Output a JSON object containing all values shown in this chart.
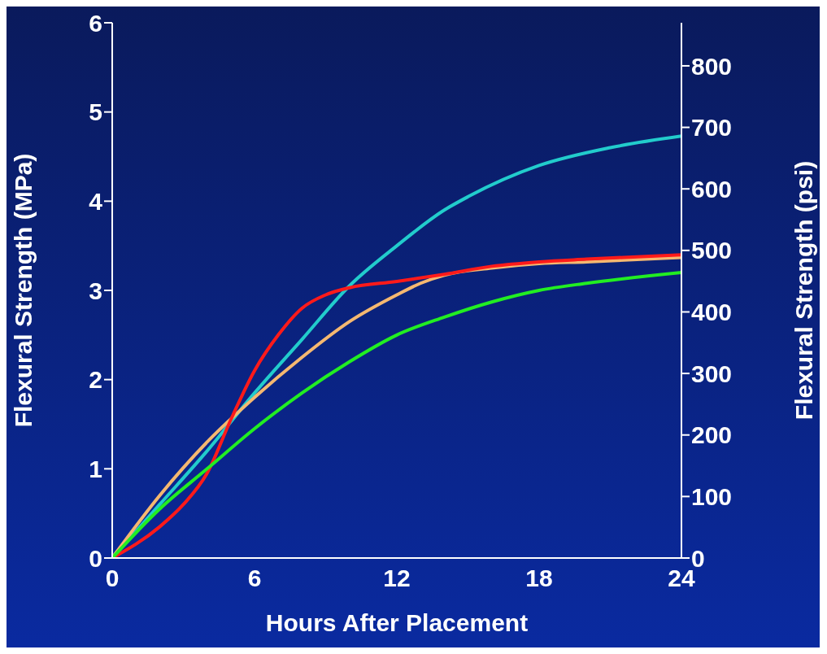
{
  "chart_data": {
    "type": "line",
    "xlabel": "Hours After Placement",
    "ylabel": "Flexural Strength (MPa)",
    "y2label": "Flexural Strength (psi)",
    "xlim": [
      0,
      24
    ],
    "xticks": [
      0,
      6,
      12,
      18,
      24
    ],
    "ylim": [
      0,
      6
    ],
    "yticks": [
      0,
      1,
      2,
      3,
      4,
      5,
      6
    ],
    "y2lim": [
      0,
      870
    ],
    "y2ticks": [
      0,
      100,
      200,
      300,
      400,
      500,
      600,
      700,
      800
    ],
    "marker": "none",
    "line_style": "solid",
    "series": [
      {
        "color": "#22cccc",
        "x": [
          0,
          2,
          4,
          6,
          8,
          10,
          12,
          14,
          15,
          18,
          21,
          24
        ],
        "values": [
          0,
          0.6,
          1.2,
          1.85,
          2.45,
          3.05,
          3.5,
          3.9,
          4.05,
          4.4,
          4.6,
          4.73
        ]
      },
      {
        "color": "#f5b870",
        "x": [
          0,
          2,
          4,
          6,
          8,
          10,
          12,
          13,
          14,
          16,
          18,
          20,
          24
        ],
        "values": [
          0,
          0.7,
          1.3,
          1.8,
          2.25,
          2.65,
          2.95,
          3.08,
          3.17,
          3.25,
          3.3,
          3.32,
          3.37
        ]
      },
      {
        "color": "#ff1a1a",
        "x": [
          0,
          2,
          3,
          4,
          5,
          6,
          7,
          8,
          9,
          10,
          12,
          14,
          16,
          18,
          20,
          24
        ],
        "values": [
          0,
          0.35,
          0.6,
          0.95,
          1.55,
          2.1,
          2.5,
          2.8,
          2.95,
          3.03,
          3.1,
          3.18,
          3.27,
          3.32,
          3.35,
          3.4
        ]
      },
      {
        "color": "#22ee22",
        "x": [
          0,
          2,
          4,
          6,
          8,
          10,
          12,
          14,
          16,
          18,
          20,
          24
        ],
        "values": [
          0,
          0.55,
          1.0,
          1.45,
          1.85,
          2.2,
          2.5,
          2.7,
          2.87,
          3.0,
          3.08,
          3.2
        ]
      }
    ]
  }
}
